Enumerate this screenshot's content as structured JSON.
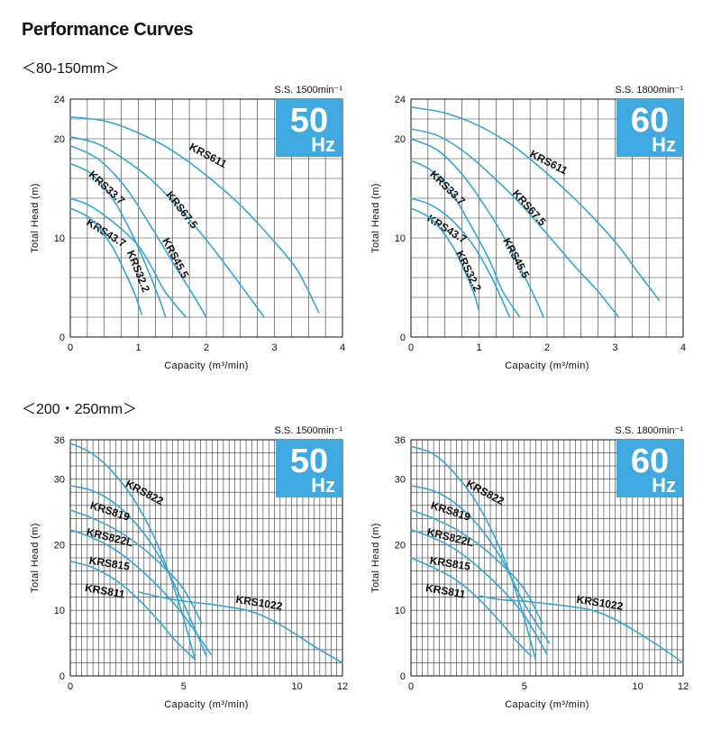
{
  "page": {
    "title": "Performance Curves",
    "sections": [
      "＜80-150mm＞",
      "＜200・250mm＞"
    ]
  },
  "chart_data": [
    {
      "type": "line",
      "section": 0,
      "speed_label": "S.S. 1500min⁻¹",
      "badge_value": "50",
      "badge_unit": "Hz",
      "xlabel": "Capacity (m³/min)",
      "ylabel": "Total Head (m)",
      "xlim": [
        0,
        4
      ],
      "ylim": [
        0,
        24
      ],
      "xticks": [
        0,
        1,
        2,
        3,
        4
      ],
      "yticks": [
        0,
        10,
        20,
        24
      ],
      "grid": true,
      "series": [
        {
          "name": "KRS611",
          "x": [
            0,
            0.5,
            1.0,
            1.5,
            2.0,
            2.5,
            3.0,
            3.35,
            3.65
          ],
          "y": [
            22.2,
            21.8,
            20.6,
            18.8,
            16.3,
            13.3,
            9.6,
            6.6,
            2.5
          ]
        },
        {
          "name": "KRS67.5",
          "x": [
            0,
            0.4,
            0.8,
            1.2,
            1.6,
            2.0,
            2.4,
            2.85
          ],
          "y": [
            20.2,
            19.5,
            17.9,
            15.8,
            13.0,
            9.8,
            6.2,
            2.0
          ]
        },
        {
          "name": "KRS45.5",
          "x": [
            0,
            0.4,
            0.8,
            1.2,
            1.5,
            1.8,
            2.0
          ],
          "y": [
            19.3,
            18.0,
            15.2,
            11.0,
            7.6,
            4.3,
            2.0
          ]
        },
        {
          "name": "KRS33.7",
          "x": [
            0,
            0.3,
            0.6,
            0.9,
            1.1,
            1.3,
            1.4
          ],
          "y": [
            17.5,
            16.5,
            14.2,
            10.5,
            7.4,
            4.0,
            2.0
          ]
        },
        {
          "name": "KRS43.7",
          "x": [
            0,
            0.3,
            0.7,
            1.0,
            1.2,
            1.4,
            1.7
          ],
          "y": [
            14.0,
            13.2,
            11.2,
            9.2,
            7.0,
            4.5,
            2.0
          ]
        },
        {
          "name": "KRS32.2",
          "x": [
            0,
            0.3,
            0.6,
            0.8,
            0.95,
            1.05
          ],
          "y": [
            13.0,
            11.9,
            9.3,
            6.6,
            4.3,
            2.3
          ]
        }
      ]
    },
    {
      "type": "line",
      "section": 0,
      "speed_label": "S.S. 1800min⁻¹",
      "badge_value": "60",
      "badge_unit": "Hz",
      "xlabel": "Capacity (m³/min)",
      "ylabel": "Total Head (m)",
      "xlim": [
        0,
        4
      ],
      "ylim": [
        0,
        24
      ],
      "xticks": [
        0,
        1,
        2,
        3,
        4
      ],
      "yticks": [
        0,
        10,
        20,
        24
      ],
      "grid": true,
      "series": [
        {
          "name": "KRS611",
          "x": [
            0,
            0.5,
            1.0,
            1.5,
            2.0,
            2.5,
            3.0,
            3.35,
            3.65
          ],
          "y": [
            23.2,
            22.6,
            21.3,
            19.3,
            16.5,
            13.3,
            9.6,
            6.4,
            3.7
          ]
        },
        {
          "name": "KRS67.5",
          "x": [
            0,
            0.4,
            0.8,
            1.2,
            1.6,
            2.0,
            2.4,
            2.75,
            3.05
          ],
          "y": [
            21.0,
            20.3,
            18.6,
            16.2,
            13.5,
            10.4,
            7.2,
            4.6,
            2.0
          ]
        },
        {
          "name": "KRS45.5",
          "x": [
            0,
            0.4,
            0.8,
            1.2,
            1.5,
            1.8,
            1.95
          ],
          "y": [
            20.0,
            18.8,
            16.0,
            12.0,
            8.4,
            4.3,
            2.0
          ]
        },
        {
          "name": "KRS33.7",
          "x": [
            0,
            0.3,
            0.6,
            0.9,
            1.15,
            1.35,
            1.6
          ],
          "y": [
            17.8,
            16.8,
            14.5,
            11.0,
            7.8,
            4.6,
            2.0
          ]
        },
        {
          "name": "KRS43.7",
          "x": [
            0,
            0.3,
            0.6,
            0.9,
            1.15,
            1.35,
            1.45
          ],
          "y": [
            14.0,
            13.3,
            11.8,
            9.4,
            6.5,
            3.6,
            2.0
          ]
        },
        {
          "name": "KRS32.2",
          "x": [
            0,
            0.3,
            0.6,
            0.8,
            0.92,
            1.0
          ],
          "y": [
            13.0,
            11.9,
            9.3,
            6.5,
            4.5,
            2.7
          ]
        }
      ]
    },
    {
      "type": "line",
      "section": 1,
      "speed_label": "S.S. 1500min⁻¹",
      "badge_value": "50",
      "badge_unit": "Hz",
      "xlabel": "Capacity (m³/min)",
      "ylabel": "Total Head (m)",
      "xlim": [
        0,
        12
      ],
      "ylim": [
        0,
        36
      ],
      "xticks": [
        0,
        5,
        10,
        12
      ],
      "yticks": [
        0,
        10,
        20,
        30,
        36
      ],
      "grid": true,
      "series": [
        {
          "name": "KRS822",
          "x": [
            0,
            1,
            2,
            3,
            4,
            4.8,
            5.5
          ],
          "y": [
            35.5,
            33.8,
            30.6,
            25.8,
            18.8,
            11.0,
            2.5
          ]
        },
        {
          "name": "KRS819",
          "x": [
            0,
            1,
            2,
            3,
            4,
            5,
            6.0
          ],
          "y": [
            29.0,
            28.2,
            26.2,
            22.8,
            17.8,
            11.0,
            3.0
          ]
        },
        {
          "name": "KRS822L",
          "x": [
            0,
            1,
            2,
            3,
            4,
            5,
            5.8
          ],
          "y": [
            25.3,
            24.0,
            22.3,
            20.0,
            17.0,
            13.2,
            8.0
          ]
        },
        {
          "name": "KRS815",
          "x": [
            0,
            1,
            2,
            3,
            4,
            5,
            6.2
          ],
          "y": [
            22.3,
            21.0,
            19.2,
            16.5,
            13.2,
            9.2,
            3.3
          ]
        },
        {
          "name": "KRS811",
          "x": [
            0,
            1,
            2,
            3,
            4,
            4.6,
            5.5
          ],
          "y": [
            17.5,
            16.5,
            14.6,
            11.7,
            8.0,
            5.5,
            2.5
          ]
        },
        {
          "name": "KRS1022",
          "x": [
            3,
            4,
            5,
            6,
            7,
            8,
            9,
            10,
            11,
            12
          ],
          "y": [
            12.8,
            12.0,
            11.4,
            11.0,
            10.5,
            9.8,
            8.3,
            6.2,
            4.0,
            2.0
          ]
        }
      ]
    },
    {
      "type": "line",
      "section": 1,
      "speed_label": "S.S. 1800min⁻¹",
      "badge_value": "60",
      "badge_unit": "Hz",
      "xlabel": "Capacity (m³/min)",
      "ylabel": "Total Head (m)",
      "xlim": [
        0,
        12
      ],
      "ylim": [
        0,
        36
      ],
      "xticks": [
        0,
        5,
        10,
        12
      ],
      "yticks": [
        0,
        10,
        20,
        30,
        36
      ],
      "grid": true,
      "series": [
        {
          "name": "KRS822",
          "x": [
            0,
            1,
            2,
            3,
            4,
            4.8,
            5.5
          ],
          "y": [
            35.0,
            33.8,
            30.6,
            25.8,
            18.8,
            11.0,
            2.5
          ]
        },
        {
          "name": "KRS819",
          "x": [
            0,
            1,
            2,
            3,
            4,
            5,
            6.1
          ],
          "y": [
            29.0,
            28.2,
            26.2,
            22.8,
            17.8,
            11.0,
            5.0
          ]
        },
        {
          "name": "KRS822L",
          "x": [
            0,
            1,
            2,
            3,
            4,
            5,
            5.8
          ],
          "y": [
            25.3,
            24.0,
            22.3,
            20.0,
            17.0,
            13.2,
            8.0
          ]
        },
        {
          "name": "KRS815",
          "x": [
            0,
            1,
            2,
            3,
            4,
            5,
            6.0
          ],
          "y": [
            22.3,
            21.0,
            19.2,
            16.5,
            13.2,
            9.2,
            3.3
          ]
        },
        {
          "name": "KRS811",
          "x": [
            0,
            1,
            2,
            3,
            4,
            4.6,
            5.3
          ],
          "y": [
            18.0,
            16.5,
            14.6,
            11.7,
            8.0,
            5.5,
            3.0
          ]
        },
        {
          "name": "KRS1022",
          "x": [
            3,
            4,
            5,
            6,
            7,
            8,
            9,
            10,
            11,
            12
          ],
          "y": [
            12.2,
            11.6,
            11.4,
            11.0,
            10.6,
            10.0,
            8.6,
            6.6,
            4.4,
            2.0
          ]
        }
      ]
    }
  ]
}
